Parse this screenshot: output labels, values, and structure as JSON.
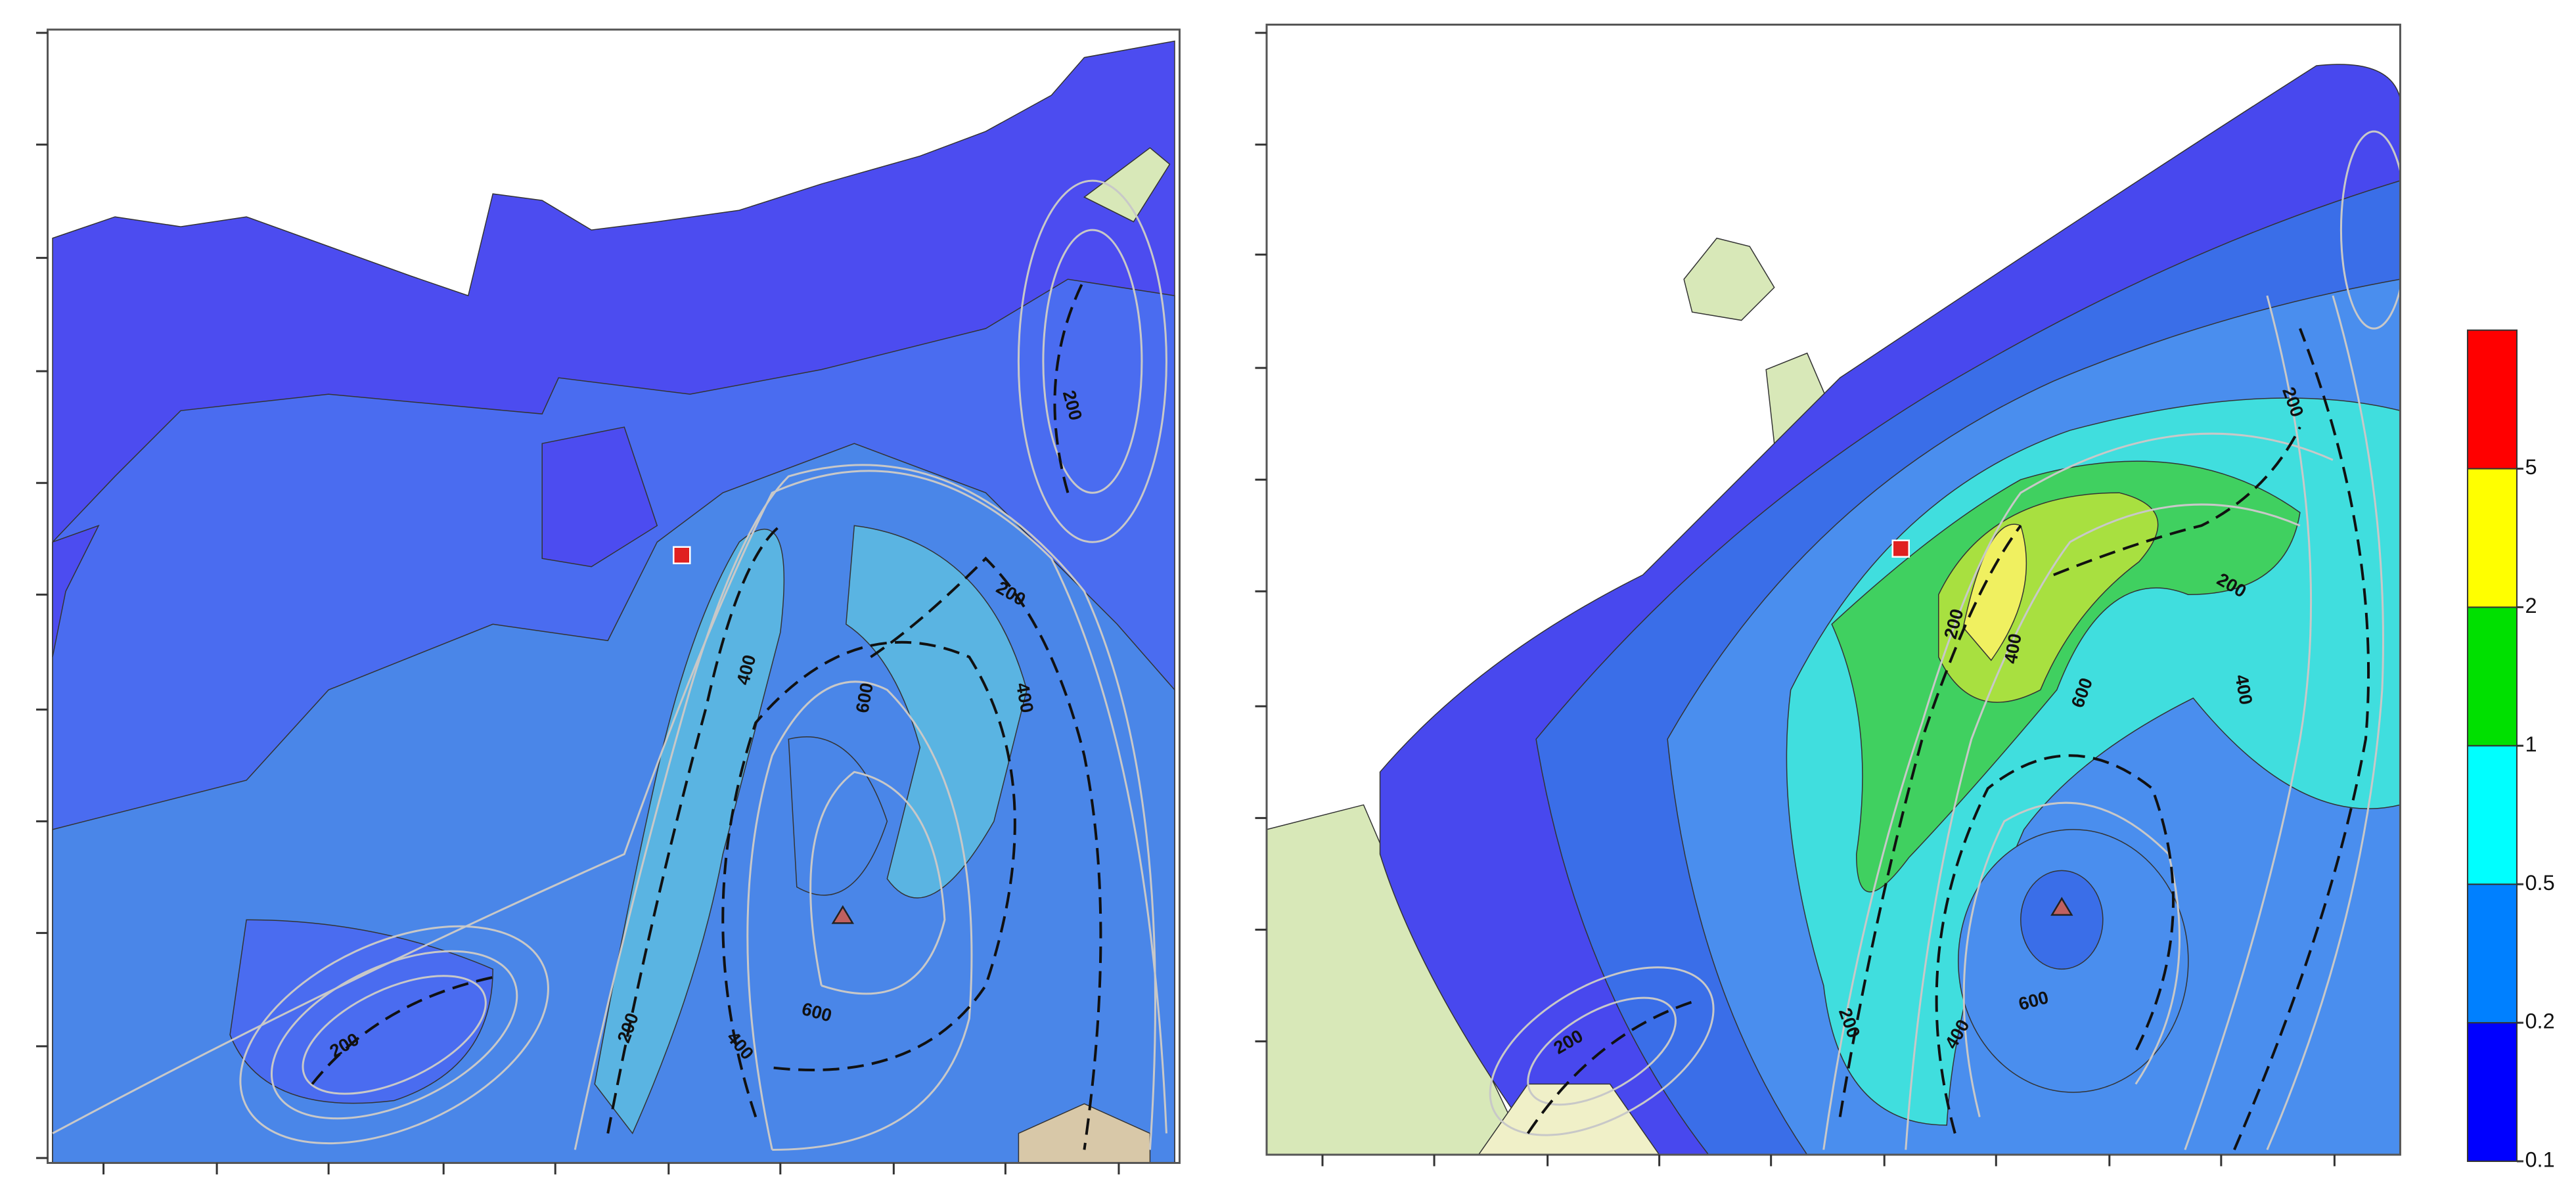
{
  "colorbar": {
    "levels": [
      0.1,
      0.2,
      0.5,
      1,
      2,
      5
    ],
    "colors": [
      "#0000ff",
      "#0080ff",
      "#00ffff",
      "#00e000",
      "#ffff00",
      "#ff0000"
    ]
  },
  "panels": [
    {
      "contour_labels": [
        200,
        200,
        400,
        600,
        400,
        200,
        200,
        400,
        600
      ]
    },
    {
      "contour_labels": [
        200,
        200,
        200,
        400,
        600,
        400,
        200,
        200,
        400,
        600
      ]
    }
  ]
}
